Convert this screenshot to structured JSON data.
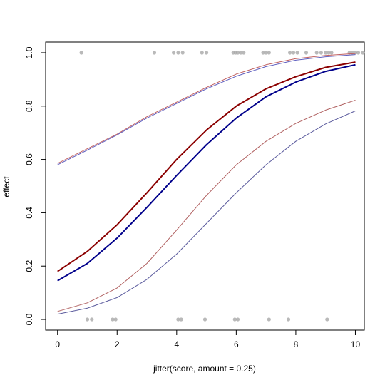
{
  "chart_data": {
    "type": "scatter",
    "title": "",
    "xlabel": "jitter(score, amount = 0.25)",
    "ylabel": "effect",
    "xlim": [
      -0.4,
      10.3
    ],
    "ylim": [
      -0.04,
      1.04
    ],
    "x_ticks": [
      0,
      2,
      4,
      6,
      8,
      10
    ],
    "y_ticks": [
      0.0,
      0.2,
      0.4,
      0.6,
      0.8,
      1.0
    ],
    "x_tick_labels": [
      "0",
      "2",
      "4",
      "6",
      "8",
      "10"
    ],
    "y_tick_labels": [
      "0.0",
      "0.2",
      "0.4",
      "0.6",
      "0.8",
      "1.0"
    ],
    "grid": false,
    "legend": "none",
    "points": {
      "color": "#a8a8a8",
      "x": [
        1.0,
        1.15,
        1.85,
        1.95,
        4.05,
        4.15,
        4.95,
        5.95,
        6.05,
        7.1,
        7.75,
        9.05,
        0.8,
        3.25,
        3.9,
        4.05,
        4.2,
        4.85,
        5.0,
        5.9,
        5.98,
        6.05,
        6.15,
        6.25,
        6.9,
        7.0,
        7.1,
        7.8,
        7.92,
        8.05,
        8.35,
        8.7,
        8.85,
        9.0,
        9.1,
        9.2,
        9.8,
        9.9,
        10.0,
        10.1,
        10.25
      ],
      "y": [
        0,
        0,
        0,
        0,
        0,
        0,
        0,
        0,
        0,
        0,
        0,
        0,
        1,
        1,
        1,
        1,
        1,
        1,
        1,
        1,
        1,
        1,
        1,
        1,
        1,
        1,
        1,
        1,
        1,
        1,
        1,
        1,
        1,
        1,
        1,
        1,
        1,
        1,
        1,
        1,
        1
      ]
    },
    "series": [
      {
        "color": "#8b0000",
        "width": 2,
        "x": [
          0,
          1,
          2,
          3,
          4,
          5,
          6,
          7,
          8,
          9,
          10
        ],
        "values": [
          0.18,
          0.255,
          0.355,
          0.475,
          0.6,
          0.71,
          0.8,
          0.865,
          0.91,
          0.945,
          0.965
        ]
      },
      {
        "color": "#00008b",
        "width": 2,
        "x": [
          0,
          1,
          2,
          3,
          4,
          5,
          6,
          7,
          8,
          9,
          10
        ],
        "values": [
          0.145,
          0.21,
          0.305,
          0.42,
          0.54,
          0.655,
          0.755,
          0.835,
          0.89,
          0.93,
          0.955
        ]
      },
      {
        "color": "#b06060",
        "width": 1,
        "x": [
          0,
          1,
          2,
          3,
          4,
          5,
          6,
          7,
          8,
          9,
          10
        ],
        "values": [
          0.03,
          0.062,
          0.118,
          0.21,
          0.335,
          0.465,
          0.58,
          0.668,
          0.735,
          0.785,
          0.822
        ]
      },
      {
        "color": "#5c5c9e",
        "width": 1,
        "x": [
          0,
          1,
          2,
          3,
          4,
          5,
          6,
          7,
          8,
          9,
          10
        ],
        "values": [
          0.02,
          0.042,
          0.082,
          0.15,
          0.245,
          0.36,
          0.475,
          0.58,
          0.668,
          0.733,
          0.782
        ]
      },
      {
        "color": "#c06060",
        "width": 1,
        "x": [
          0,
          1,
          2,
          3,
          4,
          5,
          6,
          7,
          8,
          9,
          10
        ],
        "values": [
          0.585,
          0.64,
          0.695,
          0.76,
          0.815,
          0.87,
          0.92,
          0.955,
          0.978,
          0.99,
          0.997
        ]
      },
      {
        "color": "#6060c0",
        "width": 1,
        "x": [
          0,
          1,
          2,
          3,
          4,
          5,
          6,
          7,
          8,
          9,
          10
        ],
        "values": [
          0.58,
          0.635,
          0.692,
          0.755,
          0.81,
          0.865,
          0.912,
          0.948,
          0.972,
          0.985,
          0.993
        ]
      }
    ]
  }
}
